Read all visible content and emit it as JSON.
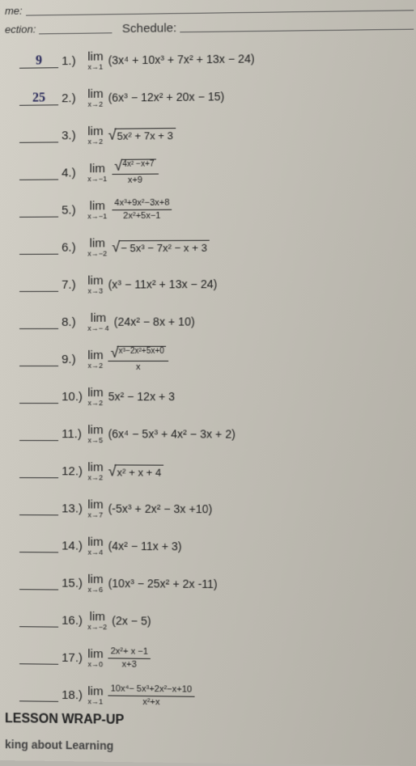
{
  "header": {
    "name_label": "me:",
    "section_label": "ection:",
    "schedule_label": "Schedule:"
  },
  "problems": [
    {
      "n": "1.)",
      "ans": "9",
      "lim": "x→1",
      "expr_plain": "(3x⁴ + 10x³ + 7x² + 13x − 24)"
    },
    {
      "n": "2.)",
      "ans": "25",
      "lim": "x→2",
      "expr_plain": "(6x³ − 12x² + 20x − 15)"
    },
    {
      "n": "3.)",
      "ans": "",
      "lim": "x→2",
      "sqrt": "5x² + 7x + 3"
    },
    {
      "n": "4.)",
      "ans": "",
      "lim": "x→−1",
      "frac_num_sqrt": "4x² −x+7",
      "frac_den": "x+9"
    },
    {
      "n": "5.)",
      "ans": "",
      "lim": "x→−1",
      "frac_num": "4x³+9x²−3x+8",
      "frac_den": "2x²+5x−1"
    },
    {
      "n": "6.)",
      "ans": "",
      "lim": "x→−2",
      "sqrt": "− 5x³ − 7x² − x + 3"
    },
    {
      "n": "7.)",
      "ans": "",
      "lim": "x→3",
      "expr_plain": "(x³ − 11x² + 13x − 24)"
    },
    {
      "n": "8.)",
      "ans": "",
      "lim": "x→− 4",
      "expr_plain": "(24x² − 8x + 10)"
    },
    {
      "n": "9.)",
      "ans": "",
      "lim": "x→2",
      "frac_num_sqrt": "x³−2x²+5x+0",
      "frac_den": "x"
    },
    {
      "n": "10.)",
      "ans": "",
      "lim": "x→2",
      "expr_plain": "5x² − 12x  + 3"
    },
    {
      "n": "11.)",
      "ans": "",
      "lim": "x→5",
      "expr_plain": "(6x⁴ − 5x³ + 4x² − 3x + 2)"
    },
    {
      "n": "12.)",
      "ans": "",
      "lim": "x→2",
      "sqrt": "x² + x + 4"
    },
    {
      "n": "13.)",
      "ans": "",
      "lim": "x→7",
      "expr_plain": "(-5x³ + 2x² − 3x +10)"
    },
    {
      "n": "14.)",
      "ans": "",
      "lim": "x→4",
      "expr_plain": "(4x² − 11x + 3)"
    },
    {
      "n": "15.)",
      "ans": "",
      "lim": "x→6",
      "expr_plain": "(10x³ − 25x² + 2x -11)"
    },
    {
      "n": "16.)",
      "ans": "",
      "lim": "x→−2",
      "expr_plain": "(2x − 5)"
    },
    {
      "n": "17.)",
      "ans": "",
      "lim": "x→0",
      "frac_num": "2x²+ x −1",
      "frac_den": "x+3"
    },
    {
      "n": "18.)",
      "ans": "",
      "lim": "x→1",
      "frac_num": "10x⁴− 5x³+2x²−x+10",
      "frac_den": "x²+x"
    }
  ],
  "footer": {
    "line1": "LESSON WRAP-UP",
    "line2": "king about Learning"
  }
}
